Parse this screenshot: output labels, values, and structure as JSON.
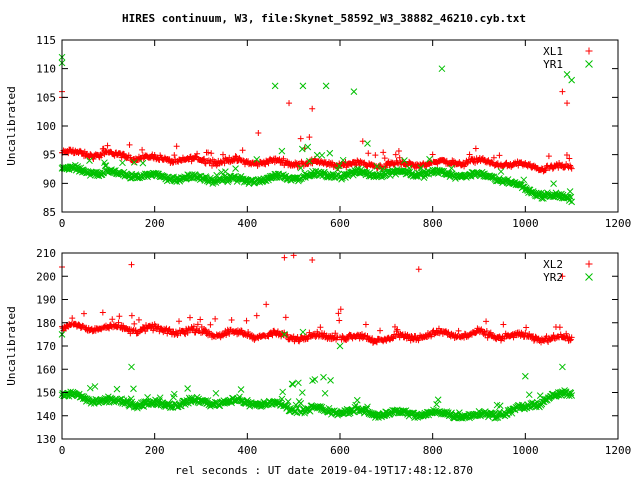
{
  "figure": {
    "title": "HIRES continuum, W3, file:Skynet_58592_W3_38882_46210.cyb.txt",
    "xlabel": "rel seconds : UT date 2019-04-19T17:48:12.870"
  },
  "chart_data": [
    {
      "type": "scatter",
      "ylabel": "Uncalibrated",
      "xlim": [
        0,
        1200
      ],
      "ylim": [
        85,
        115
      ],
      "xticks": [
        0,
        200,
        400,
        600,
        800,
        1000,
        1200
      ],
      "yticks": [
        85,
        90,
        95,
        100,
        105,
        110,
        115
      ],
      "grid": false,
      "legend_position": "top-right",
      "series": [
        {
          "name": "XL1",
          "marker": "+",
          "color": "#ff0000",
          "x_range": [
            0,
            1100
          ],
          "baseline_profile": [
            [
              0,
              95.3
            ],
            [
              100,
              95.0
            ],
            [
              200,
              94.3
            ],
            [
              300,
              94.0
            ],
            [
              400,
              93.8
            ],
            [
              500,
              93.6
            ],
            [
              600,
              93.4
            ],
            [
              700,
              93.2
            ],
            [
              800,
              93.5
            ],
            [
              900,
              93.8
            ],
            [
              1000,
              93.0
            ],
            [
              1100,
              92.6
            ]
          ],
          "notable_points": [
            [
              0,
              106
            ],
            [
              0,
              105
            ],
            [
              490,
              104
            ],
            [
              540,
              103
            ],
            [
              1080,
              106
            ],
            [
              1090,
              104
            ]
          ]
        },
        {
          "name": "YR1",
          "marker": "x",
          "color": "#00c000",
          "x_range": [
            0,
            1100
          ],
          "baseline_profile": [
            [
              0,
              92.5
            ],
            [
              100,
              91.8
            ],
            [
              200,
              91.2
            ],
            [
              300,
              90.8
            ],
            [
              400,
              90.5
            ],
            [
              500,
              91.2
            ],
            [
              600,
              91.5
            ],
            [
              700,
              91.8
            ],
            [
              800,
              91.8
            ],
            [
              900,
              91.4
            ],
            [
              960,
              90.6
            ],
            [
              1000,
              88.8
            ],
            [
              1050,
              88.0
            ],
            [
              1100,
              87.0
            ]
          ],
          "notable_points": [
            [
              0,
              112
            ],
            [
              0,
              111
            ],
            [
              460,
              107
            ],
            [
              520,
              107
            ],
            [
              570,
              107
            ],
            [
              630,
              106
            ],
            [
              820,
              110
            ],
            [
              1090,
              109
            ],
            [
              1100,
              108
            ]
          ]
        }
      ]
    },
    {
      "type": "scatter",
      "ylabel": "Uncalibrated",
      "xlim": [
        0,
        1200
      ],
      "ylim": [
        130,
        210
      ],
      "xticks": [
        0,
        200,
        400,
        600,
        800,
        1000,
        1200
      ],
      "yticks": [
        130,
        140,
        150,
        160,
        170,
        180,
        190,
        200,
        210
      ],
      "grid": false,
      "legend_position": "top-right",
      "series": [
        {
          "name": "XL2",
          "marker": "+",
          "color": "#ff0000",
          "x_range": [
            0,
            1100
          ],
          "baseline_profile": [
            [
              0,
              178
            ],
            [
              100,
              178
            ],
            [
              200,
              177
            ],
            [
              300,
              176
            ],
            [
              400,
              175
            ],
            [
              500,
              174
            ],
            [
              600,
              174
            ],
            [
              700,
              173
            ],
            [
              800,
              175
            ],
            [
              900,
              175
            ],
            [
              1000,
              174
            ],
            [
              1100,
              173
            ]
          ],
          "notable_points": [
            [
              0,
              204
            ],
            [
              150,
              205
            ],
            [
              480,
              208
            ],
            [
              500,
              209
            ],
            [
              540,
              207
            ],
            [
              770,
              203
            ],
            [
              1080,
              200
            ]
          ]
        },
        {
          "name": "YR2",
          "marker": "x",
          "color": "#00c000",
          "x_range": [
            0,
            1100
          ],
          "baseline_profile": [
            [
              0,
              149
            ],
            [
              100,
              146
            ],
            [
              200,
              145
            ],
            [
              300,
              146
            ],
            [
              400,
              146
            ],
            [
              450,
              145
            ],
            [
              500,
              143
            ],
            [
              600,
              142
            ],
            [
              700,
              141
            ],
            [
              800,
              141
            ],
            [
              900,
              140
            ],
            [
              1000,
              143
            ],
            [
              1050,
              148
            ],
            [
              1100,
              149
            ]
          ],
          "notable_points": [
            [
              0,
              175
            ],
            [
              150,
              161
            ],
            [
              480,
              175
            ],
            [
              520,
              176
            ],
            [
              600,
              170
            ],
            [
              1000,
              157
            ],
            [
              1080,
              161
            ]
          ]
        }
      ]
    }
  ]
}
